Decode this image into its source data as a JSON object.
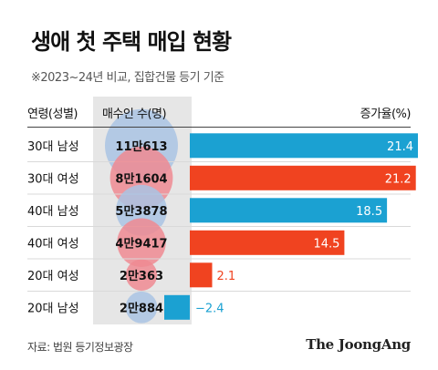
{
  "title": "생애 첫 주택 매입 현황",
  "subtitle": "※2023~24년 비교, 집합건물 등기 기준",
  "headers": {
    "group": "연령(성별)",
    "buyers": "매수인 수(명)",
    "rate": "증가율(%)"
  },
  "source": "자료: 법원 등기정보광장",
  "logo": "The JoongAng",
  "colors": {
    "male": "#1ba1d2",
    "female": "#f04320",
    "male_bubble": "#a9c3e3",
    "female_bubble": "#ef8a92",
    "column_bg": "#e6e6e6"
  },
  "chart_data": {
    "type": "bar",
    "orientation": "horizontal",
    "categories": [
      "30대 남성",
      "30대 여성",
      "40대 남성",
      "40대 여성",
      "20대 여성",
      "20대 남성"
    ],
    "buyers_label": [
      "11만613",
      "8만1604",
      "5만3878",
      "4만9417",
      "2만363",
      "2만884"
    ],
    "buyers": [
      110613,
      81604,
      53878,
      49417,
      20363,
      20884
    ],
    "gender": [
      "male",
      "female",
      "male",
      "female",
      "female",
      "male"
    ],
    "values": [
      21.4,
      21.2,
      18.5,
      14.5,
      2.1,
      -2.4
    ],
    "value_labels": [
      "21.4",
      "21.2",
      "18.5",
      "14.5",
      "2.1",
      "−2.4"
    ],
    "ylabel": "증가율(%)",
    "xlim": [
      -2.4,
      21.4
    ]
  }
}
